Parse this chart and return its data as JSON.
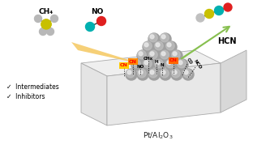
{
  "bg_color": "#ffffff",
  "slab_top_color": "#f0f0f0",
  "slab_front_color": "#e0e0e0",
  "slab_right_color": "#cccccc",
  "slab_edge_color": "#aaaaaa",
  "pt_base_color": "#a0a0a0",
  "pt_mid_color": "#c0c0c0",
  "pt_hi_color": "#e8e8e8",
  "intermediates_text": "✓  Intermediates",
  "inhibitors_text": "✓  Inhibitors",
  "ch4_label": "CH₄",
  "no_label": "NO",
  "hcn_label": "HCN",
  "support_label": "Pt/Al$_2$O$_3$",
  "beam_in_color": "#f5c860",
  "beam_out_color": "#b8dca0",
  "arrow_out_color": "#88c050",
  "cn_bg1": "#ffcc00",
  "cn_bg2": "#ff8800",
  "cn_bg3": "#ff6600"
}
